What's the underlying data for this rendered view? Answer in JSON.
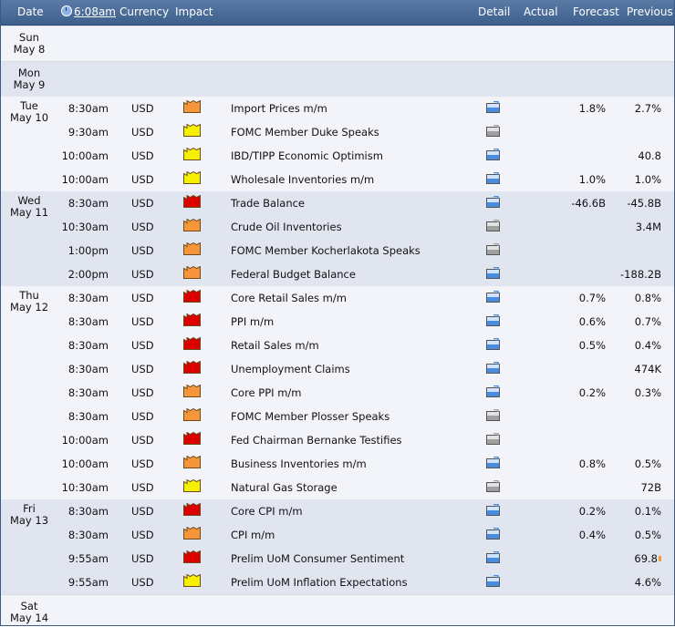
{
  "header": {
    "date": "Date",
    "time": "6:08am",
    "currency": "Currency",
    "impact": "Impact",
    "detail": "Detail",
    "actual": "Actual",
    "forecast": "Forecast",
    "previous": "Previous"
  },
  "impact_colors": {
    "high": "#dd0000",
    "medium": "#f7953b",
    "low": "#f5ef00"
  },
  "days": [
    {
      "dow": "Sun",
      "date": "May 8",
      "events": []
    },
    {
      "dow": "Mon",
      "date": "May 9",
      "events": []
    },
    {
      "dow": "Tue",
      "date": "May 10",
      "events": [
        {
          "time": "8:30am",
          "currency": "USD",
          "impact": "medium",
          "event": "Import Prices m/m",
          "detail": "new",
          "forecast": "1.8%",
          "previous": "2.7%"
        },
        {
          "time": "9:30am",
          "currency": "USD",
          "impact": "low",
          "event": "FOMC Member Duke Speaks",
          "detail": "gray",
          "forecast": "",
          "previous": ""
        },
        {
          "time": "10:00am",
          "currency": "USD",
          "impact": "low",
          "event": "IBD/TIPP Economic Optimism",
          "detail": "new",
          "forecast": "",
          "previous": "40.8"
        },
        {
          "time": "10:00am",
          "currency": "USD",
          "impact": "low",
          "event": "Wholesale Inventories m/m",
          "detail": "new",
          "forecast": "1.0%",
          "previous": "1.0%"
        }
      ]
    },
    {
      "dow": "Wed",
      "date": "May 11",
      "events": [
        {
          "time": "8:30am",
          "currency": "USD",
          "impact": "high",
          "event": "Trade Balance",
          "detail": "new",
          "forecast": "-46.6B",
          "previous": "-45.8B"
        },
        {
          "time": "10:30am",
          "currency": "USD",
          "impact": "medium",
          "event": "Crude Oil Inventories",
          "detail": "gray",
          "forecast": "",
          "previous": "3.4M"
        },
        {
          "time": "1:00pm",
          "currency": "USD",
          "impact": "medium",
          "event": "FOMC Member Kocherlakota Speaks",
          "detail": "gray",
          "forecast": "",
          "previous": ""
        },
        {
          "time": "2:00pm",
          "currency": "USD",
          "impact": "medium",
          "event": "Federal Budget Balance",
          "detail": "new",
          "forecast": "",
          "previous": "-188.2B"
        }
      ]
    },
    {
      "dow": "Thu",
      "date": "May 12",
      "events": [
        {
          "time": "8:30am",
          "currency": "USD",
          "impact": "high",
          "event": "Core Retail Sales m/m",
          "detail": "new",
          "forecast": "0.7%",
          "previous": "0.8%"
        },
        {
          "time": "8:30am",
          "currency": "USD",
          "impact": "high",
          "event": "PPI m/m",
          "detail": "new",
          "forecast": "0.6%",
          "previous": "0.7%"
        },
        {
          "time": "8:30am",
          "currency": "USD",
          "impact": "high",
          "event": "Retail Sales m/m",
          "detail": "new",
          "forecast": "0.5%",
          "previous": "0.4%"
        },
        {
          "time": "8:30am",
          "currency": "USD",
          "impact": "high",
          "event": "Unemployment Claims",
          "detail": "new",
          "forecast": "",
          "previous": "474K"
        },
        {
          "time": "8:30am",
          "currency": "USD",
          "impact": "medium",
          "event": "Core PPI m/m",
          "detail": "new",
          "forecast": "0.2%",
          "previous": "0.3%"
        },
        {
          "time": "8:30am",
          "currency": "USD",
          "impact": "medium",
          "event": "FOMC Member Plosser Speaks",
          "detail": "gray",
          "forecast": "",
          "previous": ""
        },
        {
          "time": "10:00am",
          "currency": "USD",
          "impact": "high",
          "event": "Fed Chairman Bernanke Testifies",
          "detail": "gray",
          "forecast": "",
          "previous": ""
        },
        {
          "time": "10:00am",
          "currency": "USD",
          "impact": "medium",
          "event": "Business Inventories m/m",
          "detail": "new",
          "forecast": "0.8%",
          "previous": "0.5%"
        },
        {
          "time": "10:30am",
          "currency": "USD",
          "impact": "low",
          "event": "Natural Gas Storage",
          "detail": "gray",
          "forecast": "",
          "previous": "72B"
        }
      ]
    },
    {
      "dow": "Fri",
      "date": "May 13",
      "events": [
        {
          "time": "8:30am",
          "currency": "USD",
          "impact": "high",
          "event": "Core CPI m/m",
          "detail": "new",
          "forecast": "0.2%",
          "previous": "0.1%"
        },
        {
          "time": "8:30am",
          "currency": "USD",
          "impact": "medium",
          "event": "CPI m/m",
          "detail": "new",
          "forecast": "0.4%",
          "previous": "0.5%"
        },
        {
          "time": "9:55am",
          "currency": "USD",
          "impact": "high",
          "event": "Prelim UoM Consumer Sentiment",
          "detail": "new",
          "forecast": "",
          "previous": "69.8",
          "revised": true
        },
        {
          "time": "9:55am",
          "currency": "USD",
          "impact": "low",
          "event": "Prelim UoM Inflation Expectations",
          "detail": "new",
          "forecast": "",
          "previous": "4.6%"
        }
      ]
    },
    {
      "dow": "Sat",
      "date": "May 14",
      "events": []
    }
  ]
}
